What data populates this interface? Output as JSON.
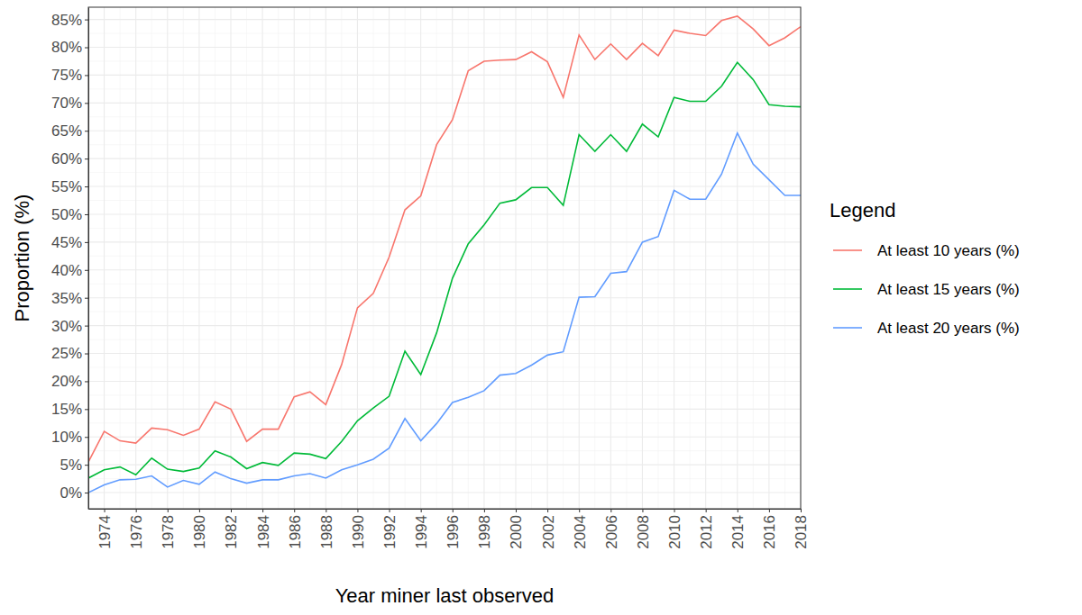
{
  "chart_data": {
    "type": "line",
    "x_label": "Year miner last observed",
    "y_label": "Proportion (%)",
    "legend_title": "Legend",
    "legend": "right",
    "grid": true,
    "x": [
      1973,
      1974,
      1975,
      1976,
      1977,
      1978,
      1979,
      1980,
      1981,
      1982,
      1983,
      1984,
      1985,
      1986,
      1987,
      1988,
      1989,
      1990,
      1991,
      1992,
      1993,
      1994,
      1995,
      1996,
      1997,
      1998,
      1999,
      2000,
      2001,
      2002,
      2003,
      2004,
      2005,
      2006,
      2007,
      2008,
      2009,
      2010,
      2011,
      2012,
      2013,
      2014,
      2015,
      2016,
      2017,
      2018
    ],
    "xlim": [
      1973,
      2018
    ],
    "xticks": [
      1974,
      1976,
      1978,
      1980,
      1982,
      1984,
      1986,
      1988,
      1990,
      1992,
      1994,
      1996,
      1998,
      2000,
      2002,
      2004,
      2006,
      2008,
      2010,
      2012,
      2014,
      2016,
      2018
    ],
    "ylim": [
      -2.9,
      87.2
    ],
    "yticks": [
      {
        "value": 0,
        "label": "0%"
      },
      {
        "value": 5,
        "label": "5%"
      },
      {
        "value": 10,
        "label": "10%"
      },
      {
        "value": 15,
        "label": "15%"
      },
      {
        "value": 20,
        "label": "20%"
      },
      {
        "value": 25,
        "label": "25%"
      },
      {
        "value": 30,
        "label": "30%"
      },
      {
        "value": 35,
        "label": "35%"
      },
      {
        "value": 40,
        "label": "40%"
      },
      {
        "value": 45,
        "label": "45%"
      },
      {
        "value": 50,
        "label": "50%"
      },
      {
        "value": 55,
        "label": "55%"
      },
      {
        "value": 60,
        "label": "60%"
      },
      {
        "value": 65,
        "label": "65%"
      },
      {
        "value": 70,
        "label": "70%"
      },
      {
        "value": 75,
        "label": "75%"
      },
      {
        "value": 80,
        "label": "80%"
      },
      {
        "value": 85,
        "label": "85%"
      }
    ],
    "series": [
      {
        "name": "At least 10 years (%)",
        "color": "#F8766D",
        "values": [
          5.5,
          11,
          9.3,
          8.9,
          11.6,
          11.3,
          10.3,
          11.4,
          16.3,
          15,
          9.2,
          11.4,
          11.4,
          17.2,
          18.1,
          15.8,
          23,
          33.2,
          35.8,
          42.3,
          50.8,
          53.3,
          62.5,
          67,
          75.8,
          77.5,
          77.7,
          77.8,
          79.2,
          77.4,
          71,
          82.2,
          77.8,
          80.6,
          77.8,
          80.7,
          78.5,
          83.1,
          82.5,
          82.1,
          84.8,
          85.6,
          83.3,
          80.3,
          81.7,
          83.7
        ]
      },
      {
        "name": "At least 15 years (%)",
        "color": "#00BA38",
        "values": [
          2.6,
          4.1,
          4.6,
          3.2,
          6.2,
          4.2,
          3.8,
          4.4,
          7.5,
          6.4,
          4.3,
          5.4,
          4.9,
          7.1,
          6.9,
          6.1,
          9.2,
          12.9,
          15.2,
          17.3,
          25.4,
          21.2,
          28.7,
          38.5,
          44.7,
          48.1,
          52,
          52.6,
          54.8,
          54.8,
          51.6,
          64.3,
          61.3,
          64.3,
          61.3,
          66.2,
          63.9,
          71,
          70.3,
          70.3,
          73,
          77.3,
          74.2,
          69.7,
          69.4,
          69.3
        ]
      },
      {
        "name": "At least 20 years (%)",
        "color": "#619CFF",
        "values": [
          0,
          1.4,
          2.3,
          2.4,
          3,
          1,
          2.2,
          1.5,
          3.7,
          2.5,
          1.7,
          2.3,
          2.3,
          3,
          3.4,
          2.6,
          4.1,
          5,
          6,
          8,
          13.3,
          9.3,
          12.4,
          16.2,
          17.1,
          18.3,
          21.1,
          21.4,
          22.9,
          24.7,
          25.3,
          35.1,
          35.2,
          39.4,
          39.7,
          45,
          46,
          54.3,
          52.7,
          52.7,
          57.2,
          64.6,
          59,
          56.2,
          53.4,
          53.4
        ]
      }
    ]
  }
}
